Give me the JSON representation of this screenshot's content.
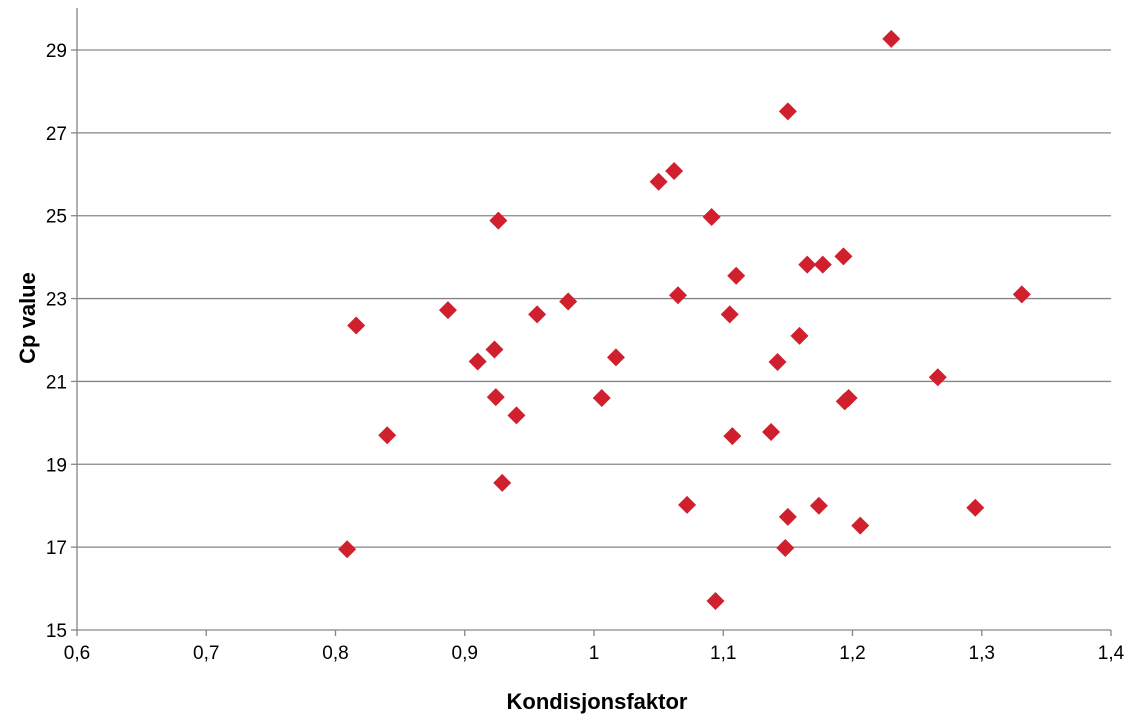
{
  "chart_data": {
    "type": "scatter",
    "title": "",
    "xlabel": "Kondisjonsfaktor",
    "ylabel": "Cp value",
    "xlim": [
      0.6,
      1.4
    ],
    "ylim": [
      15,
      30
    ],
    "xticks": [
      0.6,
      0.7,
      0.8,
      0.9,
      1.0,
      1.1,
      1.2,
      1.3,
      1.4
    ],
    "xtick_labels": [
      "0,6",
      "0,7",
      "0,8",
      "0,9",
      "1",
      "1,1",
      "1,2",
      "1,3",
      "1,4"
    ],
    "yticks": [
      15,
      17,
      19,
      21,
      23,
      25,
      27,
      29
    ],
    "ytick_labels": [
      "15",
      "17",
      "19",
      "21",
      "23",
      "25",
      "27",
      "29"
    ],
    "grid": "horizontal",
    "legend": "none",
    "marker": "diamond",
    "marker_color": "#d0202e",
    "series": [
      {
        "points": [
          [
            0.809,
            16.95
          ],
          [
            0.816,
            22.35
          ],
          [
            0.84,
            19.7
          ],
          [
            0.887,
            22.72
          ],
          [
            0.91,
            21.48
          ],
          [
            0.923,
            21.77
          ],
          [
            0.924,
            20.62
          ],
          [
            0.926,
            24.88
          ],
          [
            0.929,
            18.55
          ],
          [
            0.94,
            20.18
          ],
          [
            0.956,
            22.62
          ],
          [
            0.98,
            22.93
          ],
          [
            1.006,
            20.6
          ],
          [
            1.017,
            21.58
          ],
          [
            1.05,
            25.82
          ],
          [
            1.062,
            26.08
          ],
          [
            1.065,
            23.08
          ],
          [
            1.072,
            18.02
          ],
          [
            1.091,
            24.97
          ],
          [
            1.094,
            15.7
          ],
          [
            1.105,
            22.62
          ],
          [
            1.107,
            19.68
          ],
          [
            1.11,
            23.55
          ],
          [
            1.137,
            19.78
          ],
          [
            1.142,
            21.47
          ],
          [
            1.148,
            16.98
          ],
          [
            1.15,
            17.73
          ],
          [
            1.15,
            27.52
          ],
          [
            1.159,
            22.1
          ],
          [
            1.165,
            23.82
          ],
          [
            1.174,
            18.0
          ],
          [
            1.177,
            23.82
          ],
          [
            1.193,
            24.02
          ],
          [
            1.194,
            20.52
          ],
          [
            1.197,
            20.6
          ],
          [
            1.206,
            17.52
          ],
          [
            1.23,
            29.27
          ],
          [
            1.266,
            21.1
          ],
          [
            1.295,
            17.95
          ],
          [
            1.331,
            23.1
          ]
        ]
      }
    ]
  }
}
